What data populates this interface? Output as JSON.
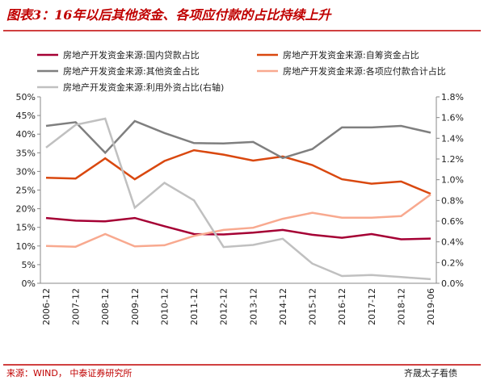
{
  "title": "图表3：16年以后其他资金、各项应付款的占比持续上升",
  "source": "来源：WIND， 中泰证券研究所",
  "watermark": "齐晟太子看债",
  "chart_data": {
    "type": "line",
    "categories": [
      "2006-12",
      "2007-12",
      "2008-12",
      "2009-12",
      "2010-12",
      "2011-12",
      "2012-12",
      "2013-12",
      "2014-12",
      "2015-12",
      "2016-12",
      "2017-12",
      "2018-12",
      "2019-06"
    ],
    "series": [
      {
        "name": "房地产开发资金来源:国内贷款占比",
        "color": "#a50034",
        "values": [
          17.5,
          16.8,
          16.6,
          17.5,
          15.3,
          13.2,
          13.1,
          13.6,
          14.3,
          13.0,
          12.2,
          13.2,
          11.8,
          12.0
        ]
      },
      {
        "name": "房地产开发资金来源:自筹资金占比",
        "color": "#d9480f",
        "values": [
          28.3,
          28.1,
          33.5,
          27.9,
          32.8,
          35.7,
          34.5,
          32.9,
          34.0,
          31.7,
          27.9,
          26.7,
          27.3,
          24.0
        ]
      },
      {
        "name": "房地产开发资金来源:其他资金占比",
        "color": "#7f7f7f",
        "values": [
          42.2,
          43.2,
          35.0,
          43.5,
          40.3,
          37.6,
          37.5,
          37.9,
          33.6,
          36.0,
          41.8,
          41.8,
          42.2,
          40.4
        ]
      },
      {
        "name": "房地产开发资金来源:各项应付款合计占比",
        "color": "#f8a98f",
        "values": [
          10.0,
          9.8,
          13.2,
          9.9,
          10.2,
          12.7,
          14.3,
          14.9,
          17.3,
          18.9,
          17.6,
          17.6,
          18.0,
          23.8
        ]
      },
      {
        "name": "房地产开发资金来源:利用外资占比(右轴)",
        "color": "#c0c0c0",
        "axis": "y2",
        "values": [
          1.31,
          1.53,
          1.59,
          0.73,
          0.97,
          0.8,
          0.35,
          0.37,
          0.43,
          0.19,
          0.07,
          0.08,
          0.06,
          0.04
        ]
      }
    ],
    "ylim": [
      0,
      50
    ],
    "yticks": [
      {
        "value": 0,
        "label": "0%"
      },
      {
        "value": 5,
        "label": "5%"
      },
      {
        "value": 10,
        "label": "10%"
      },
      {
        "value": 15,
        "label": "15%"
      },
      {
        "value": 20,
        "label": "20%"
      },
      {
        "value": 25,
        "label": "25%"
      },
      {
        "value": 30,
        "label": "30%"
      },
      {
        "value": 35,
        "label": "35%"
      },
      {
        "value": 40,
        "label": "40%"
      },
      {
        "value": 45,
        "label": "45%"
      },
      {
        "value": 50,
        "label": "50%"
      }
    ],
    "y2lim": [
      0,
      1.8
    ],
    "y2ticks": [
      {
        "value": 0,
        "label": "0.0%"
      },
      {
        "value": 0.2,
        "label": "0.2%"
      },
      {
        "value": 0.4,
        "label": "0.4%"
      },
      {
        "value": 0.6,
        "label": "0.6%"
      },
      {
        "value": 0.8,
        "label": "0.8%"
      },
      {
        "value": 1.0,
        "label": "1.0%"
      },
      {
        "value": 1.2,
        "label": "1.2%"
      },
      {
        "value": 1.4,
        "label": "1.4%"
      },
      {
        "value": 1.6,
        "label": "1.6%"
      },
      {
        "value": 1.8,
        "label": "1.8%"
      }
    ]
  }
}
